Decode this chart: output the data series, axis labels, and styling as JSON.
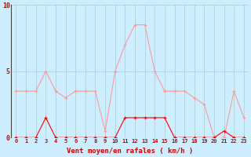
{
  "hours": [
    0,
    1,
    2,
    3,
    4,
    5,
    6,
    7,
    8,
    9,
    10,
    11,
    12,
    13,
    14,
    15,
    16,
    17,
    18,
    19,
    20,
    21,
    22,
    23
  ],
  "rafales": [
    3.5,
    3.5,
    3.5,
    5.0,
    3.5,
    3.0,
    3.5,
    3.5,
    3.5,
    0.5,
    5.0,
    7.0,
    8.5,
    8.5,
    5.0,
    3.5,
    3.5,
    3.5,
    3.0,
    2.5,
    0.0,
    0.0,
    3.5,
    1.5
  ],
  "moyen": [
    0.0,
    0.0,
    0.0,
    1.5,
    0.0,
    0.0,
    0.0,
    0.0,
    0.0,
    0.0,
    0.0,
    1.5,
    1.5,
    1.5,
    1.5,
    1.5,
    0.0,
    0.0,
    0.0,
    0.0,
    0.0,
    0.5,
    0.0,
    0.0
  ],
  "bg_color": "#cceeff",
  "line_color_rafales": "#ff9999",
  "line_color_moyen": "#ff0000",
  "grid_color": "#aacccc",
  "xlabel": "Vent moyen/en rafales ( km/h )",
  "ylim": [
    0,
    10
  ],
  "yticks": [
    0,
    5,
    10
  ],
  "marker": "+",
  "label_color": "#cc0000"
}
